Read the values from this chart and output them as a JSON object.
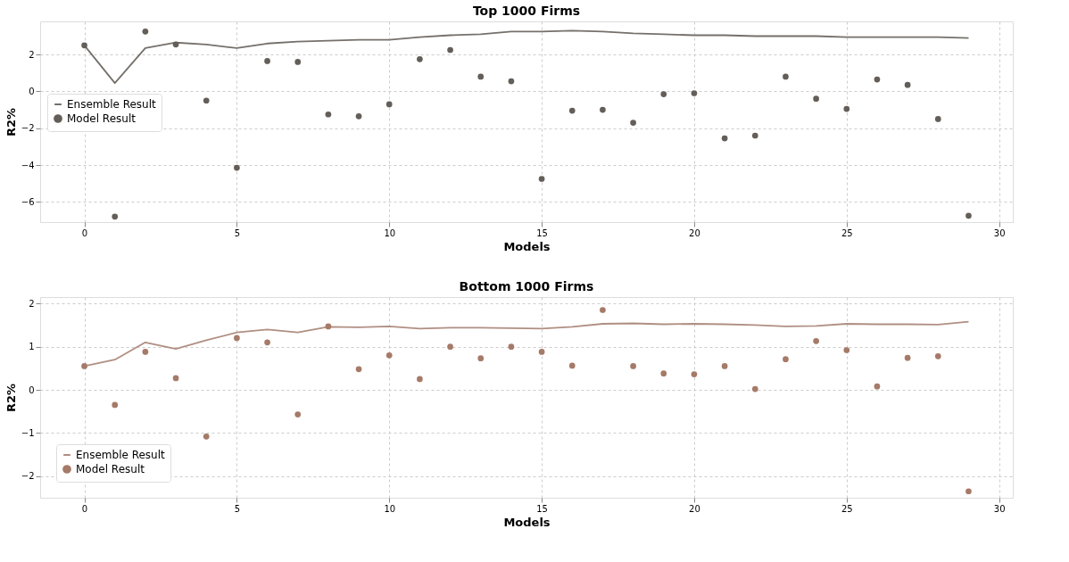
{
  "chart_data": [
    {
      "type": "line",
      "title": "Top 1000 Firms",
      "xlabel": "Models",
      "ylabel": "R2%",
      "x": [
        0,
        1,
        2,
        3,
        4,
        5,
        6,
        7,
        8,
        9,
        10,
        11,
        12,
        13,
        14,
        15,
        16,
        17,
        18,
        19,
        20,
        21,
        22,
        23,
        24,
        25,
        26,
        27,
        28,
        29
      ],
      "xlim": [
        -1.45,
        30.45
      ],
      "xticks": [
        0,
        5,
        10,
        15,
        20,
        25,
        30
      ],
      "ylim": [
        -7.1,
        3.8
      ],
      "yticks": [
        -6,
        -4,
        -2,
        0,
        2
      ],
      "grid": true,
      "legend": "left",
      "series": [
        {
          "name": "Ensemble Result",
          "type": "line",
          "color": "#75706b",
          "values": [
            2.5,
            0.45,
            2.35,
            2.65,
            2.55,
            2.35,
            2.6,
            2.7,
            2.75,
            2.8,
            2.8,
            2.95,
            3.05,
            3.1,
            3.25,
            3.25,
            3.3,
            3.25,
            3.15,
            3.1,
            3.05,
            3.05,
            3.0,
            3.0,
            3.0,
            2.95,
            2.95,
            2.95,
            2.95,
            2.9
          ]
        },
        {
          "name": "Model Result",
          "type": "scatter",
          "marker": "circle",
          "color": "#635e58",
          "values": [
            2.5,
            -6.8,
            3.25,
            2.55,
            -0.5,
            -4.15,
            1.65,
            1.6,
            -1.25,
            -1.35,
            -0.7,
            1.75,
            2.25,
            0.8,
            0.55,
            -4.75,
            -1.05,
            -1.0,
            -1.7,
            -0.15,
            -0.1,
            -2.55,
            -2.4,
            0.8,
            -0.4,
            -0.95,
            0.65,
            0.35,
            -1.5,
            -6.75
          ]
        }
      ]
    },
    {
      "type": "line",
      "title": "Bottom 1000 Firms",
      "xlabel": "Models",
      "ylabel": "R2%",
      "x": [
        0,
        1,
        2,
        3,
        4,
        5,
        6,
        7,
        8,
        9,
        10,
        11,
        12,
        13,
        14,
        15,
        16,
        17,
        18,
        19,
        20,
        21,
        22,
        23,
        24,
        25,
        26,
        27,
        28,
        29
      ],
      "xlim": [
        -1.45,
        30.45
      ],
      "xticks": [
        0,
        5,
        10,
        15,
        20,
        25,
        30
      ],
      "ylim": [
        -2.5,
        2.15
      ],
      "yticks": [
        -2,
        -1,
        0,
        1,
        2
      ],
      "grid": true,
      "legend": "bottom left",
      "series": [
        {
          "name": "Ensemble Result",
          "type": "line",
          "color": "#b08f83",
          "values": [
            0.55,
            0.7,
            1.1,
            0.95,
            1.15,
            1.33,
            1.4,
            1.33,
            1.46,
            1.45,
            1.47,
            1.42,
            1.44,
            1.44,
            1.43,
            1.42,
            1.46,
            1.53,
            1.54,
            1.52,
            1.53,
            1.52,
            1.5,
            1.47,
            1.48,
            1.53,
            1.52,
            1.52,
            1.51,
            1.58
          ]
        },
        {
          "name": "Model Result",
          "type": "scatter",
          "marker": "circle",
          "color": "#a67a68",
          "values": [
            0.55,
            -0.35,
            0.88,
            0.27,
            -1.08,
            1.2,
            1.1,
            -0.57,
            1.47,
            0.48,
            0.8,
            0.25,
            1.0,
            0.73,
            1.0,
            0.88,
            0.56,
            1.85,
            0.55,
            0.38,
            0.36,
            0.55,
            0.02,
            0.71,
            1.13,
            0.92,
            0.08,
            0.74,
            0.78,
            -2.35
          ]
        }
      ]
    }
  ]
}
